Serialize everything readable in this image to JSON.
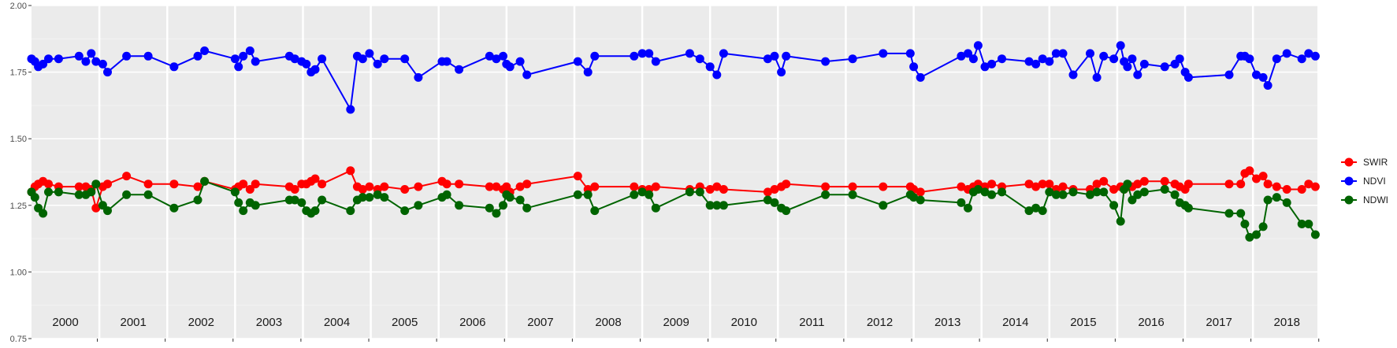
{
  "chart_data": {
    "type": "line",
    "title": "",
    "xlabel": "",
    "ylabel": "",
    "ylim": [
      0.75,
      2.0
    ],
    "yticks": [
      "0.75",
      "1.00",
      "1.25",
      "1.50",
      "1.75",
      "2.00"
    ],
    "ytick_values": [
      0.75,
      1.0,
      1.25,
      1.5,
      1.75,
      2.0
    ],
    "xlim": [
      2000.0,
      2018.95
    ],
    "year_bands": [
      2000,
      2001,
      2002,
      2003,
      2004,
      2005,
      2006,
      2007,
      2008,
      2009,
      2010,
      2011,
      2012,
      2013,
      2014,
      2015,
      2016,
      2017,
      2018
    ],
    "year_labels": [
      "2000",
      "2001",
      "2002",
      "2003",
      "2004",
      "2005",
      "2006",
      "2007",
      "2008",
      "2009",
      "2010",
      "2011",
      "2012",
      "2013",
      "2014",
      "2015",
      "2016",
      "2017",
      "2018"
    ],
    "grid": true,
    "legend_position": "right",
    "series": [
      {
        "name": "SWIR",
        "color": "#ff0000",
        "x": [
          2000.0,
          2000.05,
          2000.1,
          2000.17,
          2000.25,
          2000.4,
          2000.7,
          2000.8,
          2000.88,
          2000.95,
          2001.05,
          2001.12,
          2001.4,
          2001.72,
          2002.1,
          2002.45,
          2002.55,
          2003.0,
          2003.05,
          2003.12,
          2003.22,
          2003.3,
          2003.8,
          2003.88,
          2003.98,
          2004.05,
          2004.12,
          2004.18,
          2004.28,
          2004.7,
          2004.8,
          2004.88,
          2004.98,
          2005.1,
          2005.2,
          2005.5,
          2005.7,
          2006.05,
          2006.12,
          2006.3,
          2006.75,
          2006.85,
          2006.95,
          2007.0,
          2007.05,
          2007.2,
          2007.3,
          2008.05,
          2008.2,
          2008.3,
          2008.88,
          2009.0,
          2009.1,
          2009.2,
          2009.7,
          2009.85,
          2010.0,
          2010.1,
          2010.2,
          2010.85,
          2010.95,
          2011.05,
          2011.12,
          2011.7,
          2012.1,
          2012.55,
          2012.95,
          2013.0,
          2013.1,
          2013.7,
          2013.8,
          2013.88,
          2013.95,
          2014.05,
          2014.15,
          2014.3,
          2014.7,
          2014.8,
          2014.9,
          2015.0,
          2015.1,
          2015.2,
          2015.35,
          2015.6,
          2015.7,
          2015.8,
          2015.95,
          2016.05,
          2016.1,
          2016.15,
          2016.22,
          2016.3,
          2016.4,
          2016.7,
          2016.85,
          2016.92,
          2017.0,
          2017.05,
          2017.65,
          2017.82,
          2017.88,
          2017.95,
          2018.05,
          2018.15,
          2018.22,
          2018.35,
          2018.5,
          2018.72,
          2018.82,
          2018.92
        ],
        "values": [
          1.3,
          1.32,
          1.33,
          1.34,
          1.33,
          1.32,
          1.32,
          1.32,
          1.31,
          1.24,
          1.32,
          1.33,
          1.36,
          1.33,
          1.33,
          1.32,
          1.34,
          1.31,
          1.32,
          1.33,
          1.31,
          1.33,
          1.32,
          1.31,
          1.33,
          1.33,
          1.34,
          1.35,
          1.33,
          1.38,
          1.32,
          1.31,
          1.32,
          1.31,
          1.32,
          1.31,
          1.32,
          1.34,
          1.33,
          1.33,
          1.32,
          1.32,
          1.31,
          1.32,
          1.3,
          1.32,
          1.33,
          1.36,
          1.31,
          1.32,
          1.32,
          1.31,
          1.31,
          1.32,
          1.31,
          1.32,
          1.31,
          1.32,
          1.31,
          1.3,
          1.31,
          1.32,
          1.33,
          1.32,
          1.32,
          1.32,
          1.32,
          1.31,
          1.3,
          1.32,
          1.31,
          1.32,
          1.33,
          1.32,
          1.33,
          1.32,
          1.33,
          1.32,
          1.33,
          1.33,
          1.31,
          1.32,
          1.31,
          1.31,
          1.33,
          1.34,
          1.31,
          1.32,
          1.31,
          1.32,
          1.32,
          1.33,
          1.34,
          1.34,
          1.33,
          1.32,
          1.31,
          1.33,
          1.33,
          1.33,
          1.37,
          1.38,
          1.35,
          1.36,
          1.33,
          1.32,
          1.31,
          1.31,
          1.33,
          1.32
        ]
      },
      {
        "name": "NDVI",
        "color": "#0000ff",
        "x": [
          2000.0,
          2000.05,
          2000.1,
          2000.17,
          2000.25,
          2000.4,
          2000.7,
          2000.8,
          2000.88,
          2000.95,
          2001.05,
          2001.12,
          2001.4,
          2001.72,
          2002.1,
          2002.45,
          2002.55,
          2003.0,
          2003.05,
          2003.12,
          2003.22,
          2003.3,
          2003.8,
          2003.88,
          2003.98,
          2004.05,
          2004.12,
          2004.18,
          2004.28,
          2004.7,
          2004.8,
          2004.88,
          2004.98,
          2005.1,
          2005.2,
          2005.5,
          2005.7,
          2006.05,
          2006.12,
          2006.3,
          2006.75,
          2006.85,
          2006.95,
          2007.0,
          2007.05,
          2007.2,
          2007.3,
          2008.05,
          2008.2,
          2008.3,
          2008.88,
          2009.0,
          2009.1,
          2009.2,
          2009.7,
          2009.85,
          2010.0,
          2010.1,
          2010.2,
          2010.85,
          2010.95,
          2011.05,
          2011.12,
          2011.7,
          2012.1,
          2012.55,
          2012.95,
          2013.0,
          2013.1,
          2013.7,
          2013.8,
          2013.88,
          2013.95,
          2014.05,
          2014.15,
          2014.3,
          2014.7,
          2014.8,
          2014.9,
          2015.0,
          2015.1,
          2015.2,
          2015.35,
          2015.6,
          2015.7,
          2015.8,
          2015.95,
          2016.05,
          2016.1,
          2016.15,
          2016.22,
          2016.3,
          2016.4,
          2016.7,
          2016.85,
          2016.92,
          2017.0,
          2017.05,
          2017.65,
          2017.82,
          2017.88,
          2017.95,
          2018.05,
          2018.15,
          2018.22,
          2018.35,
          2018.5,
          2018.72,
          2018.82,
          2018.92
        ],
        "values": [
          1.8,
          1.79,
          1.77,
          1.78,
          1.8,
          1.8,
          1.81,
          1.79,
          1.82,
          1.79,
          1.78,
          1.75,
          1.81,
          1.81,
          1.77,
          1.81,
          1.83,
          1.8,
          1.77,
          1.81,
          1.83,
          1.79,
          1.81,
          1.8,
          1.79,
          1.78,
          1.75,
          1.76,
          1.8,
          1.61,
          1.81,
          1.8,
          1.82,
          1.78,
          1.8,
          1.8,
          1.73,
          1.79,
          1.79,
          1.76,
          1.81,
          1.8,
          1.81,
          1.78,
          1.77,
          1.79,
          1.74,
          1.79,
          1.75,
          1.81,
          1.81,
          1.82,
          1.82,
          1.79,
          1.82,
          1.8,
          1.77,
          1.74,
          1.82,
          1.8,
          1.81,
          1.75,
          1.81,
          1.79,
          1.8,
          1.82,
          1.82,
          1.77,
          1.73,
          1.81,
          1.82,
          1.8,
          1.85,
          1.77,
          1.78,
          1.8,
          1.79,
          1.78,
          1.8,
          1.79,
          1.82,
          1.82,
          1.74,
          1.82,
          1.73,
          1.81,
          1.8,
          1.85,
          1.79,
          1.77,
          1.8,
          1.74,
          1.78,
          1.77,
          1.78,
          1.8,
          1.75,
          1.73,
          1.74,
          1.81,
          1.81,
          1.8,
          1.74,
          1.73,
          1.7,
          1.8,
          1.82,
          1.8,
          1.82,
          1.81
        ]
      },
      {
        "name": "NDWI",
        "color": "#006400",
        "x": [
          2000.0,
          2000.05,
          2000.1,
          2000.17,
          2000.25,
          2000.4,
          2000.7,
          2000.8,
          2000.88,
          2000.95,
          2001.05,
          2001.12,
          2001.4,
          2001.72,
          2002.1,
          2002.45,
          2002.55,
          2003.0,
          2003.05,
          2003.12,
          2003.22,
          2003.3,
          2003.8,
          2003.88,
          2003.98,
          2004.05,
          2004.12,
          2004.18,
          2004.28,
          2004.7,
          2004.8,
          2004.88,
          2004.98,
          2005.1,
          2005.2,
          2005.5,
          2005.7,
          2006.05,
          2006.12,
          2006.3,
          2006.75,
          2006.85,
          2006.95,
          2007.0,
          2007.05,
          2007.2,
          2007.3,
          2008.05,
          2008.2,
          2008.3,
          2008.88,
          2009.0,
          2009.1,
          2009.2,
          2009.7,
          2009.85,
          2010.0,
          2010.1,
          2010.2,
          2010.85,
          2010.95,
          2011.05,
          2011.12,
          2011.7,
          2012.1,
          2012.55,
          2012.95,
          2013.0,
          2013.1,
          2013.7,
          2013.8,
          2013.88,
          2013.95,
          2014.05,
          2014.15,
          2014.3,
          2014.7,
          2014.8,
          2014.9,
          2015.0,
          2015.1,
          2015.2,
          2015.35,
          2015.6,
          2015.7,
          2015.8,
          2015.95,
          2016.05,
          2016.1,
          2016.15,
          2016.22,
          2016.3,
          2016.4,
          2016.7,
          2016.85,
          2016.92,
          2017.0,
          2017.05,
          2017.65,
          2017.82,
          2017.88,
          2017.95,
          2018.05,
          2018.15,
          2018.22,
          2018.35,
          2018.5,
          2018.72,
          2018.82,
          2018.92
        ],
        "values": [
          1.3,
          1.28,
          1.24,
          1.22,
          1.3,
          1.3,
          1.29,
          1.29,
          1.3,
          1.33,
          1.25,
          1.23,
          1.29,
          1.29,
          1.24,
          1.27,
          1.34,
          1.3,
          1.26,
          1.23,
          1.26,
          1.25,
          1.27,
          1.27,
          1.26,
          1.23,
          1.22,
          1.23,
          1.27,
          1.23,
          1.27,
          1.28,
          1.28,
          1.29,
          1.28,
          1.23,
          1.25,
          1.28,
          1.29,
          1.25,
          1.24,
          1.22,
          1.25,
          1.29,
          1.28,
          1.27,
          1.24,
          1.29,
          1.29,
          1.23,
          1.29,
          1.3,
          1.29,
          1.24,
          1.3,
          1.3,
          1.25,
          1.25,
          1.25,
          1.27,
          1.26,
          1.24,
          1.23,
          1.29,
          1.29,
          1.25,
          1.29,
          1.28,
          1.27,
          1.26,
          1.24,
          1.3,
          1.31,
          1.3,
          1.29,
          1.3,
          1.23,
          1.24,
          1.23,
          1.3,
          1.29,
          1.29,
          1.3,
          1.29,
          1.3,
          1.3,
          1.25,
          1.19,
          1.31,
          1.33,
          1.27,
          1.29,
          1.3,
          1.31,
          1.29,
          1.26,
          1.25,
          1.24,
          1.22,
          1.22,
          1.18,
          1.13,
          1.14,
          1.17,
          1.27,
          1.28,
          1.26,
          1.18,
          1.18,
          1.14
        ]
      }
    ]
  }
}
